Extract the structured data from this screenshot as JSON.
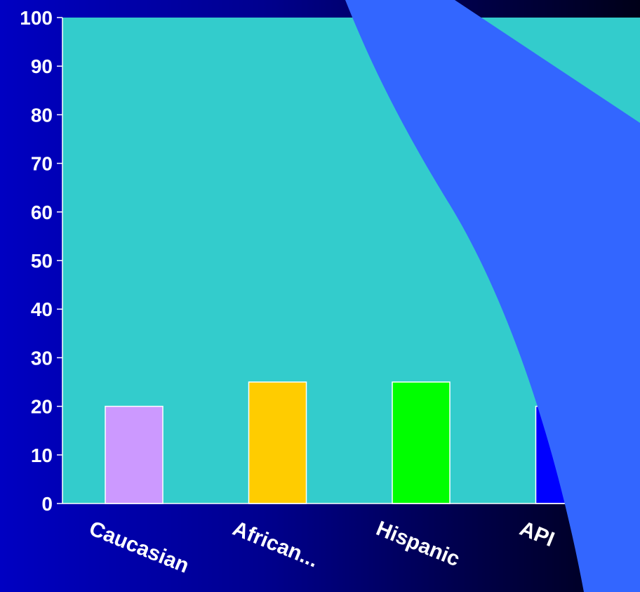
{
  "chart_data": {
    "type": "bar",
    "categories": [
      "Caucasian",
      "African...",
      "Hispanic",
      "API"
    ],
    "values": [
      20,
      25,
      25,
      20
    ],
    "bar_colors": [
      "#cc99ff",
      "#ffcc00",
      "#00ff00",
      "#0000ff"
    ],
    "ylim": [
      0,
      100
    ],
    "yticks": [
      "0",
      "10",
      "20",
      "30",
      "40",
      "50",
      "60",
      "70",
      "80",
      "90",
      "100"
    ],
    "grid": false,
    "legend": "none",
    "plot_background": "#33cccc",
    "page_background": "#0000c2",
    "overlay_color": "#3366ff"
  }
}
